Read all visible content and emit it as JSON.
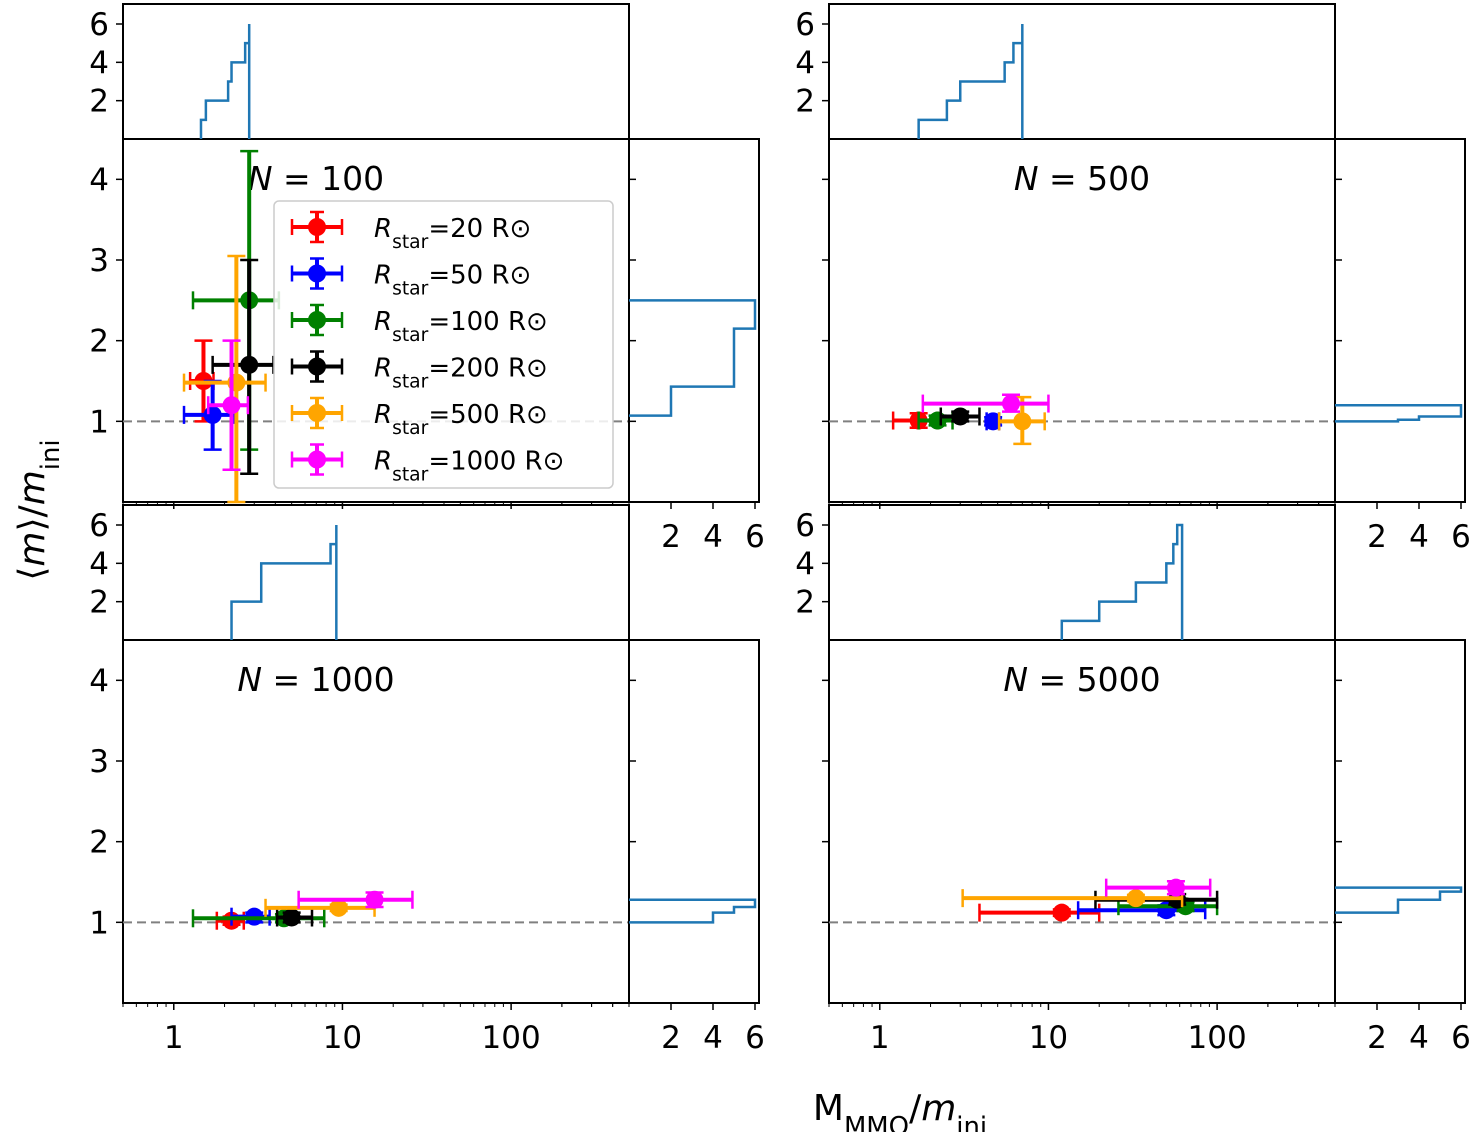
{
  "chart_data": {
    "type": "scatter",
    "xlabel": "M_MMO/m_ini",
    "ylabel": "⟨m⟩/m_ini",
    "x_scale": "log",
    "xlim": [
      0.5,
      500
    ],
    "ylim": [
      0,
      4.5
    ],
    "x_ticks": [
      "1",
      "10",
      "100"
    ],
    "y_ticks": [
      "1",
      "2",
      "3",
      "4"
    ],
    "hist_ticks": [
      "2",
      "4",
      "6"
    ],
    "hist_top_yticks": [
      "2",
      "4",
      "6"
    ],
    "hist_lim": [
      0,
      6
    ],
    "reference_line_y": 1,
    "legend": [
      {
        "label": "R_star=20 R⊙",
        "color": "#ff0000"
      },
      {
        "label": "R_star=50 R⊙",
        "color": "#0000ff"
      },
      {
        "label": "R_star=100 R⊙",
        "color": "#008000"
      },
      {
        "label": "R_star=200 R⊙",
        "color": "#000000"
      },
      {
        "label": "R_star=500 R⊙",
        "color": "#ffa500"
      },
      {
        "label": "R_star=1000 R⊙",
        "color": "#ff00ff"
      }
    ],
    "hist_color": "#1f77b4",
    "panels": [
      {
        "title": "N = 100",
        "points": [
          {
            "series": "20",
            "x": 1.5,
            "xlo": 1.25,
            "xhi": 1.72,
            "y": 1.5,
            "ylo": 1.0,
            "yhi": 2.0
          },
          {
            "series": "50",
            "x": 1.7,
            "xlo": 1.15,
            "xhi": 2.3,
            "y": 1.08,
            "ylo": 0.65,
            "yhi": 1.5
          },
          {
            "series": "100",
            "x": 2.8,
            "xlo": 1.3,
            "xhi": 4.2,
            "y": 2.5,
            "ylo": 0.65,
            "yhi": 4.35
          },
          {
            "series": "200",
            "x": 2.8,
            "xlo": 1.7,
            "xhi": 3.9,
            "y": 1.7,
            "ylo": 0.35,
            "yhi": 3.0
          },
          {
            "series": "500",
            "x": 2.35,
            "xlo": 1.15,
            "xhi": 3.5,
            "y": 1.48,
            "ylo": 0.0,
            "yhi": 3.05
          },
          {
            "series": "1000",
            "x": 2.2,
            "xlo": 1.6,
            "xhi": 2.75,
            "y": 1.2,
            "ylo": 0.4,
            "yhi": 2.0
          }
        ],
        "hist_x_edges": [
          1.45,
          1.55,
          1.7,
          2.1,
          2.2,
          2.3,
          2.65,
          2.8,
          2.8
        ],
        "hist_x_counts": [
          1,
          2,
          2,
          3,
          4,
          4,
          5,
          6
        ],
        "hist_y_edges": [
          1.07,
          1.43,
          2.15,
          2.5
        ],
        "hist_y_counts": [
          2,
          5,
          6
        ]
      },
      {
        "title": "N = 500",
        "points": [
          {
            "series": "20",
            "x": 1.7,
            "xlo": 1.2,
            "xhi": 2.2,
            "y": 1.01,
            "ylo": 0.92,
            "yhi": 1.1
          },
          {
            "series": "50",
            "x": 4.7,
            "xlo": 4.3,
            "xhi": 5.1,
            "y": 1.0,
            "ylo": 0.95,
            "yhi": 1.05
          },
          {
            "series": "100",
            "x": 2.2,
            "xlo": 1.7,
            "xhi": 2.7,
            "y": 1.01,
            "ylo": 0.95,
            "yhi": 1.07
          },
          {
            "series": "200",
            "x": 3.0,
            "xlo": 2.3,
            "xhi": 3.9,
            "y": 1.06,
            "ylo": 1.0,
            "yhi": 1.12
          },
          {
            "series": "500",
            "x": 7.0,
            "xlo": 5.1,
            "xhi": 9.5,
            "y": 1.0,
            "ylo": 0.72,
            "yhi": 1.3
          },
          {
            "series": "1000",
            "x": 6.0,
            "xlo": 1.8,
            "xhi": 10.0,
            "y": 1.22,
            "ylo": 1.12,
            "yhi": 1.33
          }
        ],
        "hist_x_edges": [
          1.7,
          2.5,
          3.0,
          3.9,
          5.5,
          6.2,
          6.7,
          7.0,
          7.0
        ],
        "hist_x_counts": [
          1,
          2,
          3,
          3,
          4,
          5,
          5,
          6
        ],
        "hist_y_edges": [
          1.0,
          1.02,
          1.06,
          1.2
        ],
        "hist_y_counts": [
          3,
          4,
          6
        ]
      },
      {
        "title": "N = 1000",
        "points": [
          {
            "series": "20",
            "x": 2.2,
            "xlo": 1.8,
            "xhi": 2.6,
            "y": 1.02,
            "ylo": 0.97,
            "yhi": 1.07
          },
          {
            "series": "50",
            "x": 3.0,
            "xlo": 2.2,
            "xhi": 3.7,
            "y": 1.07,
            "ylo": 1.0,
            "yhi": 1.12
          },
          {
            "series": "100",
            "x": 4.5,
            "xlo": 1.3,
            "xhi": 7.8,
            "y": 1.05,
            "ylo": 1.0,
            "yhi": 1.1
          },
          {
            "series": "200",
            "x": 5.0,
            "xlo": 4.1,
            "xhi": 6.6,
            "y": 1.06,
            "ylo": 1.0,
            "yhi": 1.12
          },
          {
            "series": "500",
            "x": 9.5,
            "xlo": 3.5,
            "xhi": 15.5,
            "y": 1.18,
            "ylo": 1.14,
            "yhi": 1.22
          },
          {
            "series": "1000",
            "x": 15.5,
            "xlo": 5.5,
            "xhi": 26.0,
            "y": 1.28,
            "ylo": 1.19,
            "yhi": 1.37
          }
        ],
        "hist_x_edges": [
          2.2,
          2.2,
          3.3,
          3.3,
          8.5,
          9.2,
          9.2
        ],
        "hist_x_counts": [
          1,
          2,
          2,
          4,
          5,
          6
        ],
        "hist_y_edges": [
          1.0,
          1.12,
          1.19,
          1.28
        ],
        "hist_y_counts": [
          4,
          5,
          6
        ]
      },
      {
        "title": "N = 5000",
        "points": [
          {
            "series": "20",
            "x": 12.0,
            "xlo": 3.9,
            "xhi": 20.0,
            "y": 1.12,
            "ylo": 1.08,
            "yhi": 1.16
          },
          {
            "series": "50",
            "x": 50.0,
            "xlo": 15.0,
            "xhi": 85.0,
            "y": 1.15,
            "ylo": 1.09,
            "yhi": 1.21
          },
          {
            "series": "100",
            "x": 65.0,
            "xlo": 26.0,
            "xhi": 100.0,
            "y": 1.2,
            "ylo": 1.14,
            "yhi": 1.25
          },
          {
            "series": "200",
            "x": 58.0,
            "xlo": 19.0,
            "xhi": 100.0,
            "y": 1.28,
            "ylo": 1.22,
            "yhi": 1.35
          },
          {
            "series": "500",
            "x": 33.0,
            "xlo": 3.1,
            "xhi": 62.0,
            "y": 1.3,
            "ylo": 1.26,
            "yhi": 1.34
          },
          {
            "series": "1000",
            "x": 57.0,
            "xlo": 22.0,
            "xhi": 91.0,
            "y": 1.43,
            "ylo": 1.35,
            "yhi": 1.51
          }
        ],
        "hist_x_edges": [
          12.0,
          20.0,
          33.0,
          50.0,
          55.0,
          58.0,
          62.0,
          62.0
        ],
        "hist_x_counts": [
          1,
          2,
          3,
          4,
          5,
          6,
          6
        ],
        "hist_y_edges": [
          1.12,
          1.28,
          1.38,
          1.43
        ],
        "hist_y_counts": [
          3,
          5,
          6
        ]
      }
    ]
  }
}
